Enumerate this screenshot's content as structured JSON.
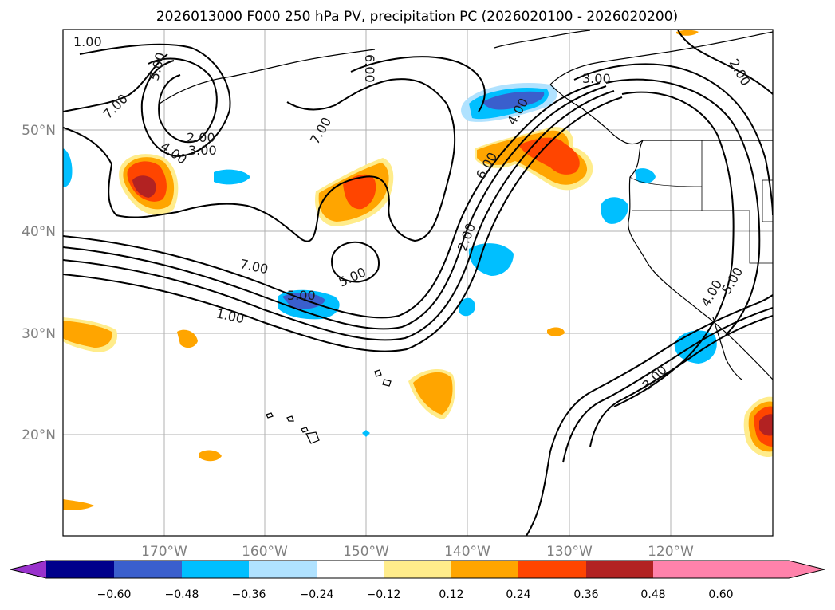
{
  "title": "2026013000 F000 250 hPa PV, precipitation PC (2026020100 - 2026020200)",
  "map": {
    "lat_labels": [
      "50°N",
      "40°N",
      "30°N",
      "20°N"
    ],
    "lon_labels": [
      "170°W",
      "160°W",
      "150°W",
      "140°W",
      "130°W",
      "120°W"
    ]
  },
  "contour_labels": [
    "1.00",
    "7.00",
    "5.00",
    "2.00",
    "4.00",
    "3.00",
    "6.00",
    "7.00",
    "5.00",
    "5.00",
    "4.00",
    "2.00",
    "6.00",
    "3.00",
    "2.00",
    "4.00",
    "5.00",
    "3.00",
    "7.00",
    "1.00"
  ],
  "colorbar": {
    "ticks": [
      "−0.60",
      "−0.48",
      "−0.36",
      "−0.24",
      "−0.12",
      "0.12",
      "0.24",
      "0.36",
      "0.48",
      "0.60"
    ],
    "colors": [
      "#9932cc",
      "#00008b",
      "#3a5fcd",
      "#00bfff",
      "#b0e2ff",
      "#ffffff",
      "#ffec8b",
      "#ffa500",
      "#ff4500",
      "#b22222",
      "#ff82ab"
    ]
  }
}
